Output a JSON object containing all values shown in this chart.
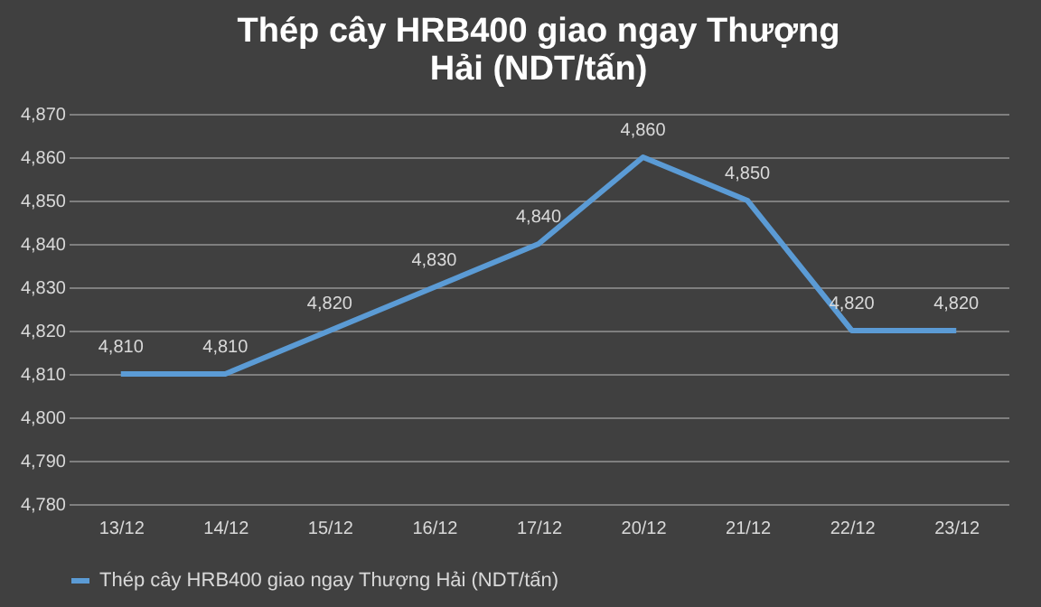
{
  "chart_data": {
    "type": "line",
    "title": "Thép cây HRB400 giao ngay Thượng Hải (NDT/tấn)",
    "categories": [
      "13/12",
      "14/12",
      "15/12",
      "16/12",
      "17/12",
      "20/12",
      "21/12",
      "22/12",
      "23/12"
    ],
    "series": [
      {
        "name": "Thép cây HRB400 giao ngay Thượng Hải (NDT/tấn)",
        "color": "#5b9bd5",
        "values": [
          4810,
          4810,
          4820,
          4830,
          4840,
          4860,
          4850,
          4820,
          4820
        ],
        "value_labels": [
          "4,810",
          "4,810",
          "4,820",
          "4,830",
          "4,840",
          "4,860",
          "4,850",
          "4,820",
          "4,820"
        ]
      }
    ],
    "ylim": [
      4780,
      4870
    ],
    "yticks": [
      {
        "value": 4780,
        "label": "4,780"
      },
      {
        "value": 4790,
        "label": "4,790"
      },
      {
        "value": 4800,
        "label": "4,800"
      },
      {
        "value": 4810,
        "label": "4,810"
      },
      {
        "value": 4820,
        "label": "4,820"
      },
      {
        "value": 4830,
        "label": "4,830"
      },
      {
        "value": 4840,
        "label": "4,840"
      },
      {
        "value": 4850,
        "label": "4,850"
      },
      {
        "value": 4860,
        "label": "4,860"
      },
      {
        "value": 4870,
        "label": "4,870"
      }
    ],
    "grid": "y",
    "legend": "bottom",
    "marker": "none",
    "line_style": "solid"
  }
}
